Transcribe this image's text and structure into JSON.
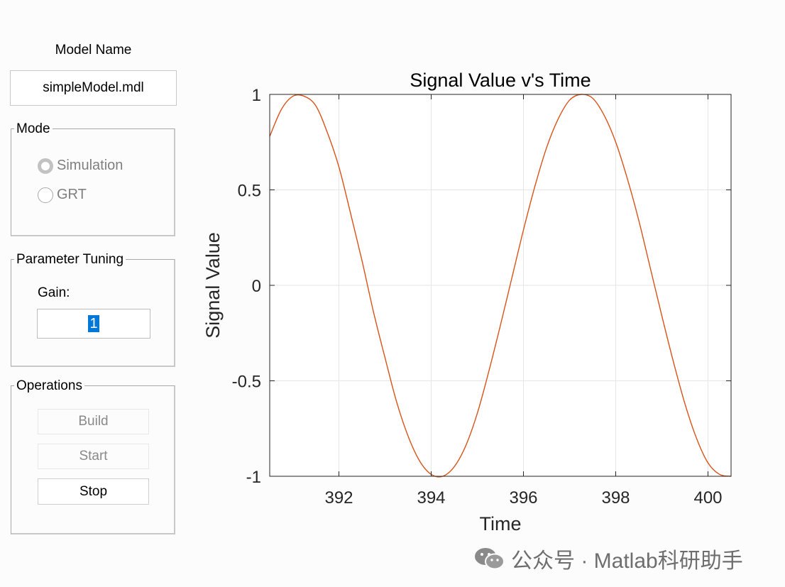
{
  "model": {
    "label": "Model Name",
    "value": "simpleModel.mdl"
  },
  "mode_panel": {
    "title": "Mode",
    "options": [
      {
        "label": "Simulation",
        "selected": true
      },
      {
        "label": "GRT",
        "selected": false
      }
    ]
  },
  "tuning_panel": {
    "title": "Parameter Tuning",
    "gain_label": "Gain:",
    "gain_value": "1"
  },
  "operations_panel": {
    "title": "Operations",
    "buttons": [
      {
        "label": "Build",
        "enabled": false
      },
      {
        "label": "Start",
        "enabled": false
      },
      {
        "label": "Stop",
        "enabled": true
      }
    ]
  },
  "chart_data": {
    "type": "line",
    "title": "Signal Value v's Time",
    "xlabel": "Time",
    "ylabel": "Signal Value",
    "xlim": [
      390.5,
      400.5
    ],
    "ylim": [
      -1,
      1
    ],
    "x_ticks": [
      392,
      394,
      396,
      398,
      400
    ],
    "y_ticks": [
      -1,
      -0.5,
      0,
      0.5,
      1
    ],
    "x_tick_labels": [
      "392",
      "394",
      "396",
      "398",
      "400"
    ],
    "y_tick_labels": [
      "-1",
      "-0.5",
      "0",
      "0.5",
      "1"
    ],
    "grid": true,
    "series": [
      {
        "color": "#d95319",
        "x": [
          390.5,
          390.75,
          391.0,
          391.25,
          391.5,
          391.75,
          392.0,
          392.25,
          392.5,
          392.75,
          393.0,
          393.25,
          393.5,
          393.75,
          394.0,
          394.25,
          394.5,
          394.75,
          395.0,
          395.25,
          395.5,
          395.75,
          396.0,
          396.25,
          396.5,
          396.75,
          397.0,
          397.25,
          397.5,
          397.75,
          398.0,
          398.25,
          398.5,
          398.75,
          399.0,
          399.25,
          399.5,
          399.75,
          400.0,
          400.25,
          400.5
        ],
        "y": [
          0.78,
          0.92,
          0.99,
          0.99,
          0.94,
          0.8,
          0.62,
          0.38,
          0.13,
          -0.14,
          -0.38,
          -0.61,
          -0.79,
          -0.92,
          -0.99,
          -1.0,
          -0.95,
          -0.84,
          -0.67,
          -0.45,
          -0.21,
          0.04,
          0.29,
          0.52,
          0.72,
          0.87,
          0.97,
          1.0,
          0.98,
          0.89,
          0.75,
          0.56,
          0.34,
          0.09,
          -0.16,
          -0.4,
          -0.62,
          -0.8,
          -0.93,
          -0.99,
          -1.0
        ]
      }
    ]
  },
  "watermark": {
    "text": "公众号 · Matlab科研助手",
    "icon": "wechat-icon"
  }
}
